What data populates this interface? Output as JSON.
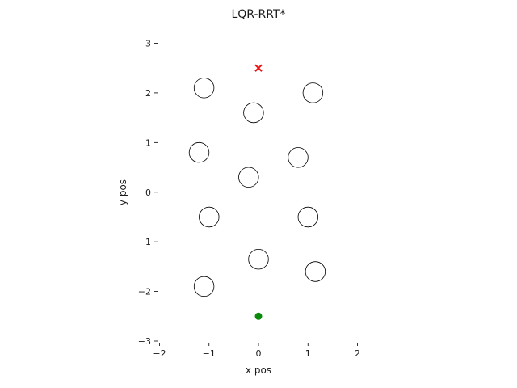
{
  "chart_data": {
    "type": "scatter",
    "title": "LQR-RRT*",
    "xlabel": "x pos",
    "ylabel": "y pos",
    "xlim": [
      -2,
      2
    ],
    "ylim": [
      -3,
      3
    ],
    "xticks": [
      -2,
      -1,
      0,
      1,
      2
    ],
    "yticks": [
      -3,
      -2,
      -1,
      0,
      1,
      2,
      3
    ],
    "xtick_labels": [
      "−2",
      "−1",
      "0",
      "1",
      "2"
    ],
    "ytick_labels": [
      "−3",
      "−2",
      "−1",
      "0",
      "1",
      "2",
      "3"
    ],
    "grid": false,
    "obstacles": {
      "shape": "circle",
      "radius": 0.2,
      "centers": [
        [
          -1.1,
          2.1
        ],
        [
          1.1,
          2.0
        ],
        [
          -0.1,
          1.6
        ],
        [
          -1.2,
          0.8
        ],
        [
          0.8,
          0.7
        ],
        [
          -0.2,
          0.3
        ],
        [
          -1.0,
          -0.5
        ],
        [
          1.0,
          -0.5
        ],
        [
          0.0,
          -1.35
        ],
        [
          1.15,
          -1.6
        ],
        [
          -1.1,
          -1.9
        ]
      ]
    },
    "goal": {
      "x": 0.0,
      "y": 2.5,
      "marker": "x",
      "color": "#ee1111"
    },
    "start": {
      "x": 0.0,
      "y": -2.5,
      "marker": "o",
      "color": "#0a8a0a"
    }
  }
}
